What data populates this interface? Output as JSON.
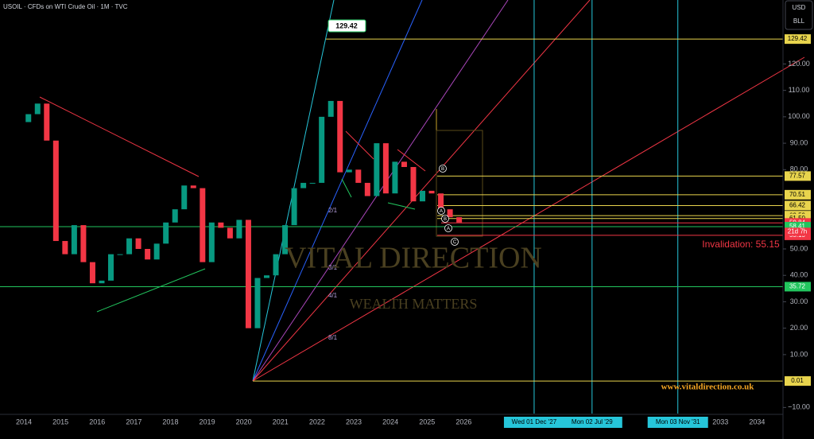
{
  "chart_data": {
    "type": "candlestick",
    "title": "USOIL · CFDs on WTI Crude Oil · 1M · TVC",
    "currency": "USD",
    "unit": "BLL",
    "x": [
      2014,
      2014.25,
      2014.5,
      2014.75,
      2015,
      2015.25,
      2015.5,
      2015.75,
      2016,
      2016.25,
      2016.5,
      2016.75,
      2017,
      2017.25,
      2017.5,
      2017.75,
      2018,
      2018.25,
      2018.5,
      2018.75,
      2019,
      2019.25,
      2019.5,
      2019.75,
      2020,
      2020.25,
      2020.5,
      2020.75,
      2021,
      2021.25,
      2021.5,
      2021.75,
      2022,
      2022.25,
      2022.5,
      2022.75,
      2023,
      2023.25,
      2023.5,
      2023.75,
      2024,
      2024.25,
      2024.5,
      2024.75,
      2025,
      2025.25,
      2025.5,
      2025.75
    ],
    "open": [
      98,
      101,
      105,
      91,
      53,
      48,
      59,
      45,
      37,
      38,
      48,
      48,
      54,
      50,
      46,
      52,
      60,
      65,
      74,
      73,
      45,
      60,
      58,
      54,
      61,
      20,
      39,
      40,
      48,
      59,
      73,
      75,
      75,
      100,
      106,
      79,
      80,
      75,
      70,
      90,
      71,
      83,
      81,
      68,
      72,
      71,
      65,
      62
    ],
    "close": [
      101,
      105,
      91,
      53,
      48,
      59,
      45,
      37,
      38,
      48,
      48,
      54,
      50,
      46,
      52,
      60,
      65,
      74,
      73,
      45,
      60,
      58,
      54,
      61,
      20,
      39,
      40,
      48,
      59,
      73,
      75,
      75,
      100,
      106,
      79,
      80,
      75,
      70,
      90,
      71,
      83,
      81,
      68,
      72,
      71,
      65,
      62,
      60
    ],
    "up_color": "#089981",
    "down_color": "#f23645",
    "xlim": [
      2013.35,
      2034.6
    ],
    "xticks": [
      2014,
      2015,
      2016,
      2017,
      2018,
      2019,
      2020,
      2021,
      2022,
      2023,
      2024,
      2025,
      2026,
      2033,
      2034
    ],
    "ylim": [
      -12.3,
      144.2
    ],
    "yticks": [
      {
        "value": 120,
        "label": "120.00"
      },
      {
        "value": 110,
        "label": "110.00"
      },
      {
        "value": 100,
        "label": "100.00"
      },
      {
        "value": 90,
        "label": "90.00"
      },
      {
        "value": 80,
        "label": "80.00"
      },
      {
        "value": 50,
        "label": "50.00"
      },
      {
        "value": 40,
        "label": "40.00"
      },
      {
        "value": 30,
        "label": "30.00"
      },
      {
        "value": 20,
        "label": "20.00"
      },
      {
        "value": 10,
        "label": "10.00"
      },
      {
        "value": -10,
        "label": "−10.00"
      }
    ],
    "levels": [
      {
        "value": 129.42,
        "color": "#e8d44d"
      },
      {
        "value": 77.57,
        "color": "#e8d44d"
      },
      {
        "value": 70.51,
        "color": "#e8d44d"
      },
      {
        "value": 66.42,
        "color": "#e8d44d"
      },
      {
        "value": 62.59,
        "color": "#e8d44d"
      },
      {
        "value": 61.5,
        "label": "61.50",
        "color": "#e8d44d"
      },
      {
        "value": 59.84,
        "color": "#f23645"
      },
      {
        "value": 58.41,
        "color": "#22c55e"
      },
      {
        "value": 55.15,
        "color": "#f23645"
      },
      {
        "value": 35.72,
        "color": "#22c55e"
      },
      {
        "value": 0.01,
        "color": "#e8d44d"
      }
    ],
    "countdown": "21d 7h",
    "time_markers": [
      {
        "value": 2027.92,
        "label": "Wed 01 Dec '27"
      },
      {
        "value": 2029.5,
        "label": "Mon 02 Jul '29"
      },
      {
        "value": 2031.84,
        "label": "Mon 03 Nov '31"
      }
    ],
    "peak_label": "129.42",
    "invalidation": "Invalidation: 55.15",
    "fan_labels": [
      "2/1",
      "3/1",
      "4/1",
      "8/1"
    ],
    "wave_labels": [
      "B",
      "A",
      "B",
      "A",
      "C"
    ],
    "watermark": "VITAL DIRECTION",
    "watermark_sub": "WEALTH MATTERS",
    "website": "www.vitaldirection.co.uk"
  }
}
